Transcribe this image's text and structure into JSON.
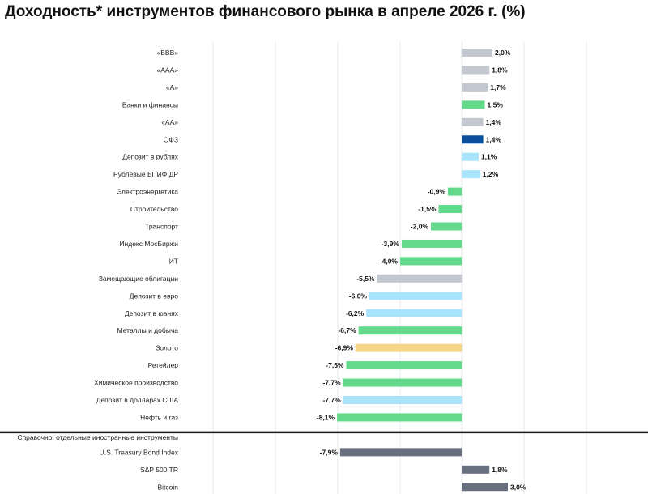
{
  "chart_data": {
    "type": "bar",
    "orientation": "horizontal",
    "title": "Доходность* инструментов финансового рынка в апреле 2026 г. (%)",
    "xlabel": "",
    "ylabel": "",
    "grid": true,
    "categories": [
      "«BBB»",
      "«AAA»",
      "«A»",
      "Банки и финансы",
      "«AA»",
      "ОФЗ",
      "Депозит в рублях",
      "Рублевые БПИФ ДР",
      "Электроэнергетика",
      "Строительство",
      "Транспорт",
      "Индекс МосБиржи",
      "ИТ",
      "Замещающие облигации",
      "Депозит в евро",
      "Депозит в юанях",
      "Металлы и добыча",
      "Золото",
      "Ретейлер",
      "Химическое производство",
      "Депозит в долларах США",
      "Нефть и газ"
    ],
    "values": [
      2.0,
      1.8,
      1.7,
      1.5,
      1.4,
      1.4,
      1.1,
      1.2,
      -0.9,
      -1.5,
      -2.0,
      -3.9,
      -4.0,
      -5.5,
      -6.0,
      -6.2,
      -6.7,
      -6.9,
      -7.5,
      -7.7,
      -7.7,
      -8.1
    ],
    "value_labels": [
      "2,0%",
      "1,8%",
      "1,7%",
      "1,5%",
      "1,4%",
      "1,4%",
      "1,1%",
      "1,2%",
      "-0,9%",
      "-1,5%",
      "-2,0%",
      "-3,9%",
      "-4,0%",
      "-5,5%",
      "-6,0%",
      "-6,2%",
      "-6,7%",
      "-6,9%",
      "-7,5%",
      "-7,7%",
      "-7,7%",
      "-8,1%"
    ],
    "bar_colors": [
      "#c2c7d0",
      "#c2c7d0",
      "#c2c7d0",
      "#63d98c",
      "#c2c7d0",
      "#0a4f9c",
      "#a8e4fb",
      "#a8e4fb",
      "#63d98c",
      "#63d98c",
      "#63d98c",
      "#63d98c",
      "#63d98c",
      "#c2c7d0",
      "#a8e4fb",
      "#a8e4fb",
      "#63d98c",
      "#f5d589",
      "#63d98c",
      "#63d98c",
      "#a8e4fb",
      "#63d98c"
    ],
    "reference_section": {
      "heading": "Справочно: отдельные иностранные инструменты",
      "categories": [
        "U.S. Treasury Bond Index",
        "S&P 500 TR",
        "Bitcoin"
      ],
      "values": [
        -7.9,
        1.8,
        3.0
      ],
      "value_labels": [
        "-7,9%",
        "1,8%",
        "3,0%"
      ],
      "bar_color": "#687080"
    },
    "xlim": [
      -10,
      4
    ]
  }
}
